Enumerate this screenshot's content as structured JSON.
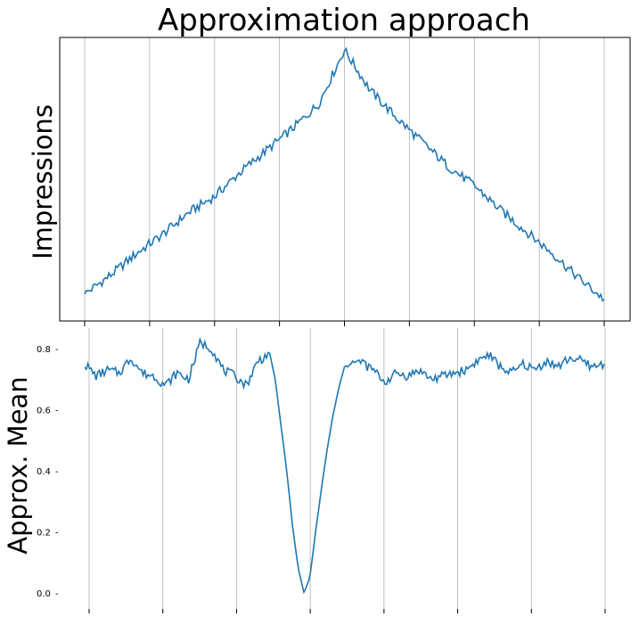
{
  "chart_data": [
    {
      "type": "line",
      "title": "Approximation approach",
      "ylabel": "Impressions",
      "xlabel": "",
      "y_ticks_shown": false,
      "x_ticks_shown": false,
      "grid": "vertical",
      "x": [
        0,
        20,
        40,
        60,
        80,
        100,
        120,
        140,
        160,
        180,
        200,
        220,
        240,
        260,
        280,
        300,
        320,
        340,
        360,
        380,
        400
      ],
      "series": [
        {
          "color": "#1f77b4",
          "values": [
            0.05,
            0.12,
            0.2,
            0.27,
            0.35,
            0.41,
            0.5,
            0.58,
            0.66,
            0.75,
            0.95,
            0.8,
            0.7,
            0.61,
            0.52,
            0.45,
            0.36,
            0.28,
            0.2,
            0.11,
            0.03
          ]
        }
      ]
    },
    {
      "type": "line",
      "title": "",
      "ylabel": "Approx. Mean",
      "xlabel": "",
      "ylim": [
        -0.02,
        0.86
      ],
      "y_ticks": [
        0.0,
        0.2,
        0.4,
        0.6,
        0.8
      ],
      "y_tick_labels": [
        "0.0",
        "0.2",
        "0.4",
        "0.6",
        "0.8"
      ],
      "x_ticks_shown": false,
      "grid": "vertical",
      "x": [
        0,
        4,
        8,
        12,
        16,
        20,
        24,
        28,
        32,
        36,
        40,
        44,
        48,
        52,
        56,
        60,
        62,
        64,
        66,
        68,
        70,
        72,
        74,
        76,
        78,
        80,
        82,
        84,
        86,
        88,
        90,
        92,
        94,
        96,
        98,
        100,
        104,
        108,
        112,
        116,
        120,
        124,
        128,
        132,
        136,
        140,
        144,
        148,
        152,
        156,
        160,
        164,
        168,
        172,
        176,
        180
      ],
      "series": [
        {
          "color": "#1f77b4",
          "values": [
            0.75,
            0.71,
            0.73,
            0.72,
            0.77,
            0.72,
            0.71,
            0.68,
            0.72,
            0.7,
            0.82,
            0.8,
            0.73,
            0.71,
            0.68,
            0.76,
            0.77,
            0.79,
            0.7,
            0.55,
            0.4,
            0.22,
            0.08,
            0.0,
            0.05,
            0.2,
            0.34,
            0.47,
            0.58,
            0.67,
            0.74,
            0.76,
            0.75,
            0.76,
            0.74,
            0.73,
            0.69,
            0.72,
            0.71,
            0.73,
            0.7,
            0.71,
            0.72,
            0.73,
            0.76,
            0.78,
            0.74,
            0.72,
            0.75,
            0.73,
            0.76,
            0.74,
            0.77,
            0.76,
            0.74,
            0.75
          ]
        }
      ]
    }
  ]
}
